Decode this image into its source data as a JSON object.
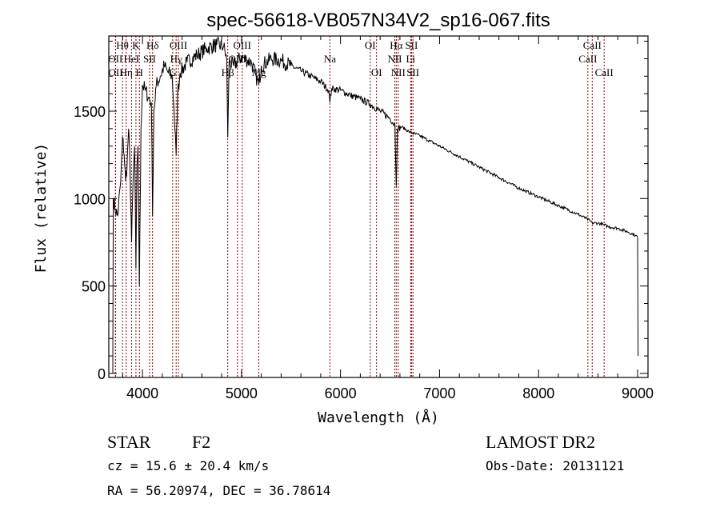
{
  "chart_data": {
    "type": "line",
    "title": "spec-56618-VB057N34V2_sp16-067.fits",
    "xlabel": "Wavelength (Å)",
    "ylabel": "Flux (relative)",
    "xlim": [
      3660,
      9105
    ],
    "ylim": [
      -23,
      1930
    ],
    "xticks": [
      4000,
      5000,
      6000,
      7000,
      8000,
      9000
    ],
    "xtick_labels": [
      "4000",
      "5000",
      "6000",
      "7000",
      "8000",
      "9000"
    ],
    "yticks": [
      0,
      500,
      1000,
      1500
    ],
    "ytick_labels": [
      "0",
      "500",
      "1000",
      "1500"
    ],
    "grid": false,
    "series": [
      {
        "name": "spectrum",
        "x": [
          3700,
          3705,
          3720,
          3750,
          3780,
          3800,
          3815,
          3830,
          3845,
          3860,
          3875,
          3890,
          3905,
          3920,
          3934,
          3945,
          3955,
          3969,
          3985,
          4000,
          4030,
          4060,
          4090,
          4102,
          4115,
          4140,
          4180,
          4220,
          4260,
          4300,
          4320,
          4340,
          4355,
          4380,
          4450,
          4550,
          4650,
          4750,
          4820,
          4850,
          4861,
          4875,
          4920,
          5000,
          5100,
          5175,
          5200,
          5300,
          5400,
          5500,
          5600,
          5700,
          5800,
          5880,
          5893,
          5910,
          6000,
          6100,
          6200,
          6300,
          6400,
          6500,
          6550,
          6563,
          6575,
          6620,
          6700,
          6800,
          6900,
          7000,
          7200,
          7400,
          7600,
          7800,
          8000,
          8200,
          8400,
          8500,
          8542,
          8600,
          8662,
          8700,
          8800,
          8900,
          8980,
          9000,
          9005
        ],
        "y": [
          0,
          1000,
          950,
          900,
          1100,
          1350,
          1250,
          1100,
          1200,
          1400,
          1150,
          750,
          1100,
          1300,
          600,
          1200,
          1300,
          500,
          1400,
          1650,
          1620,
          1580,
          1550,
          900,
          1500,
          1650,
          1700,
          1760,
          1720,
          1700,
          1500,
          1250,
          1600,
          1720,
          1780,
          1820,
          1860,
          1880,
          1870,
          1800,
          1350,
          1780,
          1760,
          1810,
          1780,
          1650,
          1760,
          1800,
          1790,
          1760,
          1730,
          1700,
          1670,
          1620,
          1550,
          1630,
          1620,
          1590,
          1570,
          1540,
          1500,
          1460,
          1420,
          1070,
          1400,
          1410,
          1380,
          1360,
          1330,
          1300,
          1240,
          1180,
          1120,
          1060,
          1010,
          960,
          910,
          880,
          860,
          860,
          850,
          840,
          830,
          810,
          790,
          780,
          100
        ]
      }
    ],
    "lines": [
      {
        "label": "Hθ",
        "wl": 3798,
        "row": 1
      },
      {
        "label": "K",
        "wl": 3934,
        "row": 1
      },
      {
        "label": "Hδ",
        "wl": 4102,
        "row": 1
      },
      {
        "label": "OIII",
        "wl": 4363,
        "row": 1
      },
      {
        "label": "OIII",
        "wl": 5007,
        "row": 1
      },
      {
        "label": "OI",
        "wl": 6300,
        "row": 1
      },
      {
        "label": "Hα",
        "wl": 6563,
        "row": 1
      },
      {
        "label": "SII",
        "wl": 6717,
        "row": 1
      },
      {
        "label": "CaII",
        "wl": 8542,
        "row": 1
      },
      {
        "label": "OII",
        "wl": 3727,
        "row": 2
      },
      {
        "label": "HeI",
        "wl": 3889,
        "row": 2
      },
      {
        "label": "SII",
        "wl": 4072,
        "row": 2
      },
      {
        "label": "Hγ",
        "wl": 4340,
        "row": 2
      },
      {
        "label": "OIII",
        "wl": 4959,
        "row": 2
      },
      {
        "label": "Na",
        "wl": 5893,
        "row": 2
      },
      {
        "label": "NII",
        "wl": 6548,
        "row": 2
      },
      {
        "label": "Li",
        "wl": 6708,
        "row": 2
      },
      {
        "label": "CaII",
        "wl": 8498,
        "row": 2
      },
      {
        "label": "OII",
        "wl": 3729,
        "row": 3
      },
      {
        "label": "Hη",
        "wl": 3835,
        "row": 3
      },
      {
        "label": "H",
        "wl": 3969,
        "row": 3
      },
      {
        "label": "G",
        "wl": 4305,
        "row": 3
      },
      {
        "label": "Hβ",
        "wl": 4861,
        "row": 3
      },
      {
        "label": "Mg",
        "wl": 5175,
        "row": 3
      },
      {
        "label": "OI",
        "wl": 6364,
        "row": 3
      },
      {
        "label": "NII",
        "wl": 6583,
        "row": 3
      },
      {
        "label": "SII",
        "wl": 6731,
        "row": 3
      },
      {
        "label": "CaII",
        "wl": 8662,
        "row": 3
      }
    ],
    "line_color": "#8b0000"
  },
  "info": {
    "class": "STAR",
    "subclass": "F2",
    "cz": "cz = 15.6 ± 20.4 km/s",
    "radec": "RA =  56.20974, DEC =  36.78614",
    "survey": "LAMOST DR2",
    "obsdate": "Obs-Date: 20131121"
  }
}
